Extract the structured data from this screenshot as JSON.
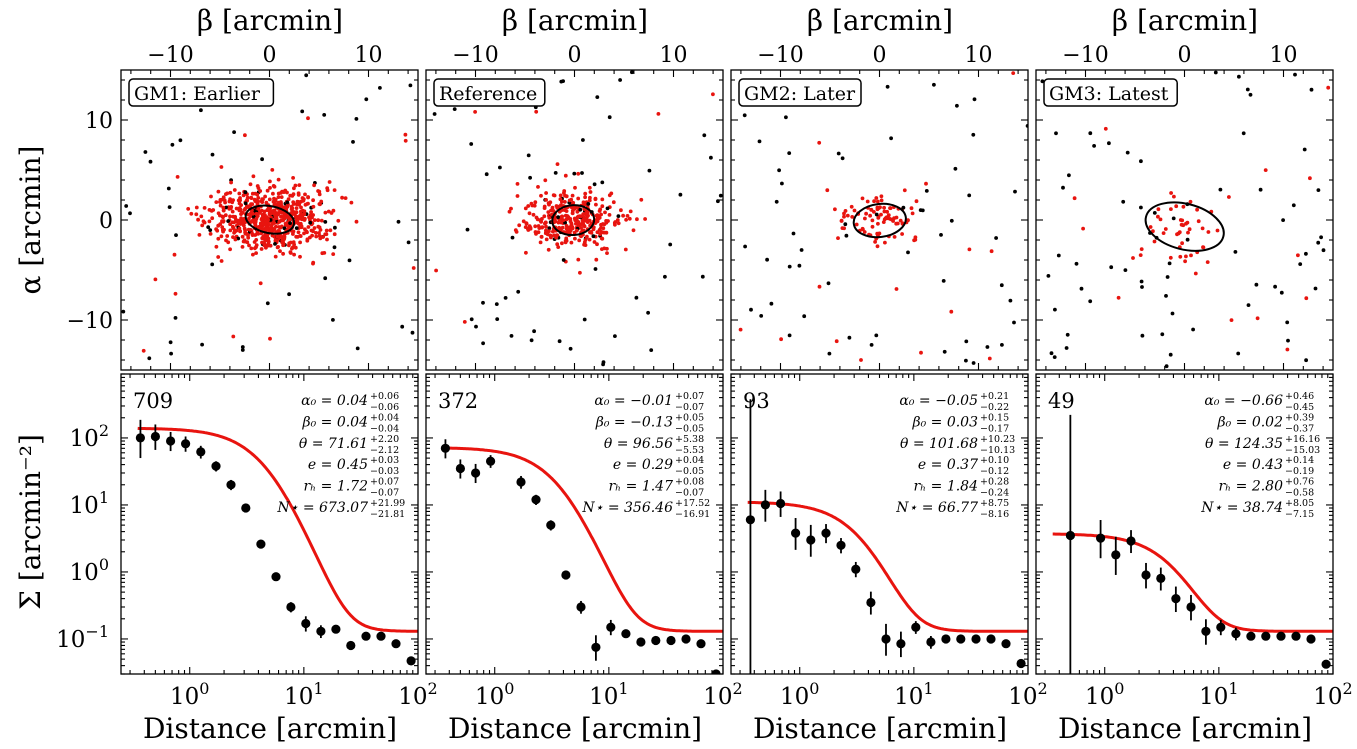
{
  "figure": {
    "top_axis_label": "β [arcmin]",
    "left_axis_label_top": "α [arcmin]",
    "left_axis_label_bottom": "Σ [arcmin⁻²]",
    "bottom_axis_label": "Distance [arcmin]"
  },
  "colors": {
    "member": "#e8140f",
    "field": "#000000",
    "model": "#e8140f",
    "ellipse": "#000000"
  },
  "chart_data": [
    {
      "type": "scatter",
      "panel": "GM1",
      "title": "GM1: Earlier",
      "xlabel": "β [arcmin]",
      "ylabel": "α [arcmin]",
      "xlim": [
        -15,
        15
      ],
      "ylim": [
        -15,
        15
      ],
      "xticks": [
        "−10",
        "0",
        "10"
      ],
      "yticks": [
        "10",
        "0",
        "−10"
      ],
      "members": {
        "count": 709,
        "center": [
          0.04,
          0.04
        ],
        "sigma": [
          3.0,
          1.6
        ]
      },
      "ellipse": {
        "x0": 0.04,
        "y0": 0.04,
        "theta": 71.61,
        "e": 0.45,
        "rh": 1.72
      },
      "field_count": 58
    },
    {
      "type": "scatter",
      "panel": "Reference",
      "title": "Reference",
      "xlabel": "β [arcmin]",
      "ylabel": "α [arcmin]",
      "xlim": [
        -15,
        15
      ],
      "ylim": [
        -15,
        15
      ],
      "xticks": [
        "−10",
        "0",
        "10"
      ],
      "yticks": [
        "10",
        "0",
        "−10"
      ],
      "members": {
        "count": 372,
        "center": [
          -0.13,
          -0.01
        ],
        "sigma": [
          2.3,
          1.5
        ]
      },
      "ellipse": {
        "x0": -0.13,
        "y0": -0.01,
        "theta": 96.56,
        "e": 0.29,
        "rh": 1.47
      },
      "field_count": 60
    },
    {
      "type": "scatter",
      "panel": "GM2",
      "title": "GM2: Later",
      "xlabel": "β [arcmin]",
      "ylabel": "α [arcmin]",
      "xlim": [
        -15,
        15
      ],
      "ylim": [
        -15,
        15
      ],
      "xticks": [
        "−10",
        "0",
        "10"
      ],
      "yticks": [
        "10",
        "0",
        "−10"
      ],
      "members": {
        "count": 93,
        "center": [
          0.03,
          -0.05
        ],
        "sigma": [
          1.9,
          1.2
        ]
      },
      "ellipse": {
        "x0": 0.03,
        "y0": -0.05,
        "theta": 101.68,
        "e": 0.37,
        "rh": 1.84
      },
      "field_count": 70
    },
    {
      "type": "scatter",
      "panel": "GM3",
      "title": "GM3: Latest",
      "xlabel": "β [arcmin]",
      "ylabel": "α [arcmin]",
      "xlim": [
        -15,
        15
      ],
      "ylim": [
        -15,
        15
      ],
      "xticks": [
        "−10",
        "0",
        "10"
      ],
      "yticks": [
        "10",
        "0",
        "−10"
      ],
      "members": {
        "count": 49,
        "center": [
          0.02,
          -0.66
        ],
        "sigma": [
          2.4,
          2.0
        ]
      },
      "ellipse": {
        "x0": 0.02,
        "y0": -0.66,
        "theta": 124.35,
        "e": 0.43,
        "rh": 2.8
      },
      "field_count": 80
    },
    {
      "type": "line",
      "panel": "GM1-profile",
      "count_label": "709",
      "xlabel": "Distance [arcmin]",
      "ylabel": "Σ [arcmin⁻²]",
      "xscale": "log",
      "yscale": "log",
      "xlim": [
        0.25,
        100
      ],
      "ylim": [
        0.03,
        900
      ],
      "annotations": [
        {
          "lhs": "α₀",
          "val": "0.04",
          "sup": "+0.06",
          "sub": "−0.06"
        },
        {
          "lhs": "β₀",
          "val": "0.04",
          "sup": "+0.04",
          "sub": "−0.04"
        },
        {
          "lhs": "θ",
          "val": "71.61",
          "sup": "+2.20",
          "sub": "−2.12"
        },
        {
          "lhs": "e",
          "val": "0.45",
          "sup": "+0.03",
          "sub": "−0.03"
        },
        {
          "lhs": "rₕ",
          "val": "1.72",
          "sup": "+0.07",
          "sub": "−0.07"
        },
        {
          "lhs": "N⋆",
          "val": "673.07",
          "sup": "+21.99",
          "sub": "−21.81"
        }
      ],
      "points": [
        [
          0.37,
          100
        ],
        [
          0.5,
          105
        ],
        [
          0.68,
          90
        ],
        [
          0.92,
          82
        ],
        [
          1.25,
          62
        ],
        [
          1.7,
          38
        ],
        [
          2.3,
          20
        ],
        [
          3.1,
          9
        ],
        [
          4.2,
          2.6
        ],
        [
          5.7,
          0.85
        ],
        [
          7.7,
          0.3
        ],
        [
          10.4,
          0.17
        ],
        [
          14.1,
          0.13
        ],
        [
          19.1,
          0.14
        ],
        [
          25.8,
          0.08
        ],
        [
          35,
          0.11
        ],
        [
          47.4,
          0.11
        ],
        [
          64.2,
          0.085
        ],
        [
          87,
          0.047
        ]
      ],
      "errors": [
        0.3,
        0.2,
        0.15,
        0.12,
        0.1,
        0.08,
        0.08,
        0.06,
        0.05,
        0.05,
        0.08,
        0.12,
        0.1,
        0,
        0,
        0,
        0,
        0,
        0
      ],
      "model": {
        "sigma0": 140,
        "rh": 5.0,
        "bkg": 0.13
      }
    },
    {
      "type": "line",
      "panel": "Reference-profile",
      "count_label": "372",
      "xlabel": "Distance [arcmin]",
      "ylabel": "Σ [arcmin⁻²]",
      "xscale": "log",
      "yscale": "log",
      "xlim": [
        0.25,
        100
      ],
      "ylim": [
        0.03,
        900
      ],
      "annotations": [
        {
          "lhs": "α₀",
          "val": "−0.01",
          "sup": "+0.07",
          "sub": "−0.07"
        },
        {
          "lhs": "β₀",
          "val": "−0.13",
          "sup": "+0.05",
          "sub": "−0.05"
        },
        {
          "lhs": "θ",
          "val": "96.56",
          "sup": "+5.38",
          "sub": "−5.53"
        },
        {
          "lhs": "e",
          "val": "0.29",
          "sup": "+0.04",
          "sub": "−0.05"
        },
        {
          "lhs": "rₕ",
          "val": "1.47",
          "sup": "+0.08",
          "sub": "−0.07"
        },
        {
          "lhs": "N⋆",
          "val": "356.46",
          "sup": "+17.52",
          "sub": "−16.91"
        }
      ],
      "points": [
        [
          0.37,
          70
        ],
        [
          0.5,
          35
        ],
        [
          0.68,
          30
        ],
        [
          0.92,
          45
        ],
        [
          1.7,
          22
        ],
        [
          2.3,
          12
        ],
        [
          3.1,
          5
        ],
        [
          4.2,
          0.9
        ],
        [
          5.7,
          0.3
        ],
        [
          7.7,
          0.075
        ],
        [
          10.4,
          0.15
        ],
        [
          14.1,
          0.12
        ],
        [
          19.1,
          0.09
        ],
        [
          25.8,
          0.095
        ],
        [
          35,
          0.095
        ],
        [
          47.4,
          0.1
        ],
        [
          64.2,
          0.085
        ],
        [
          87,
          0.03
        ]
      ],
      "errors": [
        0.15,
        0.15,
        0.15,
        0.1,
        0.1,
        0.08,
        0.08,
        0.06,
        0.1,
        0.2,
        0.12,
        0,
        0,
        0,
        0,
        0,
        0,
        0
      ],
      "model": {
        "sigma0": 72,
        "rh": 4.0,
        "bkg": 0.13
      }
    },
    {
      "type": "line",
      "panel": "GM2-profile",
      "count_label": "93",
      "xlabel": "Distance [arcmin]",
      "ylabel": "Σ [arcmin⁻²]",
      "xscale": "log",
      "yscale": "log",
      "xlim": [
        0.25,
        100
      ],
      "ylim": [
        0.03,
        900
      ],
      "annotations": [
        {
          "lhs": "α₀",
          "val": "−0.05",
          "sup": "+0.21",
          "sub": "−0.22"
        },
        {
          "lhs": "β₀",
          "val": "0.03",
          "sup": "+0.15",
          "sub": "−0.17"
        },
        {
          "lhs": "θ",
          "val": "101.68",
          "sup": "+10.23",
          "sub": "−10.13"
        },
        {
          "lhs": "e",
          "val": "0.37",
          "sup": "+0.10",
          "sub": "−0.12"
        },
        {
          "lhs": "rₕ",
          "val": "1.84",
          "sup": "+0.28",
          "sub": "−0.24"
        },
        {
          "lhs": "N⋆",
          "val": "66.77",
          "sup": "+8.75",
          "sub": "−8.16"
        }
      ],
      "points": [
        [
          0.37,
          6
        ],
        [
          0.5,
          10
        ],
        [
          0.68,
          10.5
        ],
        [
          0.92,
          3.8
        ],
        [
          1.25,
          3
        ],
        [
          1.7,
          3.8
        ],
        [
          2.3,
          2.5
        ],
        [
          3.1,
          1.1
        ],
        [
          4.2,
          0.35
        ],
        [
          5.7,
          0.1
        ],
        [
          7.7,
          0.085
        ],
        [
          10.4,
          0.15
        ],
        [
          14.1,
          0.09
        ],
        [
          19.1,
          0.1
        ],
        [
          25.8,
          0.1
        ],
        [
          35,
          0.1
        ],
        [
          47.4,
          0.1
        ],
        [
          64.2,
          0.085
        ],
        [
          87,
          0.043
        ]
      ],
      "errors": [
        2,
        0.25,
        0.2,
        0.25,
        0.25,
        0.15,
        0.12,
        0.12,
        0.18,
        0.25,
        0.2,
        0.1,
        0.1,
        0,
        0,
        0,
        0,
        0,
        0
      ],
      "model": {
        "sigma0": 11,
        "rh": 3.8,
        "bkg": 0.13
      }
    },
    {
      "type": "line",
      "panel": "GM3-profile",
      "count_label": "49",
      "xlabel": "Distance [arcmin]",
      "ylabel": "Σ [arcmin⁻²]",
      "xscale": "log",
      "yscale": "log",
      "xlim": [
        0.25,
        100
      ],
      "ylim": [
        0.03,
        900
      ],
      "annotations": [
        {
          "lhs": "α₀",
          "val": "−0.66",
          "sup": "+0.46",
          "sub": "−0.45"
        },
        {
          "lhs": "β₀",
          "val": "0.02",
          "sup": "+0.39",
          "sub": "−0.37"
        },
        {
          "lhs": "θ",
          "val": "124.35",
          "sup": "+16.16",
          "sub": "−15.03"
        },
        {
          "lhs": "e",
          "val": "0.43",
          "sup": "+0.14",
          "sub": "−0.19"
        },
        {
          "lhs": "rₕ",
          "val": "2.80",
          "sup": "+0.76",
          "sub": "−0.58"
        },
        {
          "lhs": "N⋆",
          "val": "38.74",
          "sup": "+8.05",
          "sub": "−7.15"
        }
      ],
      "points": [
        [
          0.5,
          3.5
        ],
        [
          0.92,
          3.2
        ],
        [
          1.25,
          1.8
        ],
        [
          1.7,
          2.9
        ],
        [
          2.3,
          0.9
        ],
        [
          3.1,
          0.8
        ],
        [
          4.2,
          0.4
        ],
        [
          5.7,
          0.3
        ],
        [
          7.7,
          0.13
        ],
        [
          10.4,
          0.15
        ],
        [
          14.1,
          0.12
        ],
        [
          19.1,
          0.11
        ],
        [
          25.8,
          0.11
        ],
        [
          35,
          0.11
        ],
        [
          47.4,
          0.11
        ],
        [
          64.2,
          0.1
        ],
        [
          87,
          0.042
        ]
      ],
      "errors": [
        2,
        0.3,
        0.3,
        0.18,
        0.2,
        0.18,
        0.2,
        0.2,
        0.2,
        0.12,
        0.1,
        0,
        0,
        0,
        0,
        0,
        0
      ],
      "model": {
        "sigma0": 3.6,
        "rh": 4.5,
        "bkg": 0.13
      }
    }
  ]
}
